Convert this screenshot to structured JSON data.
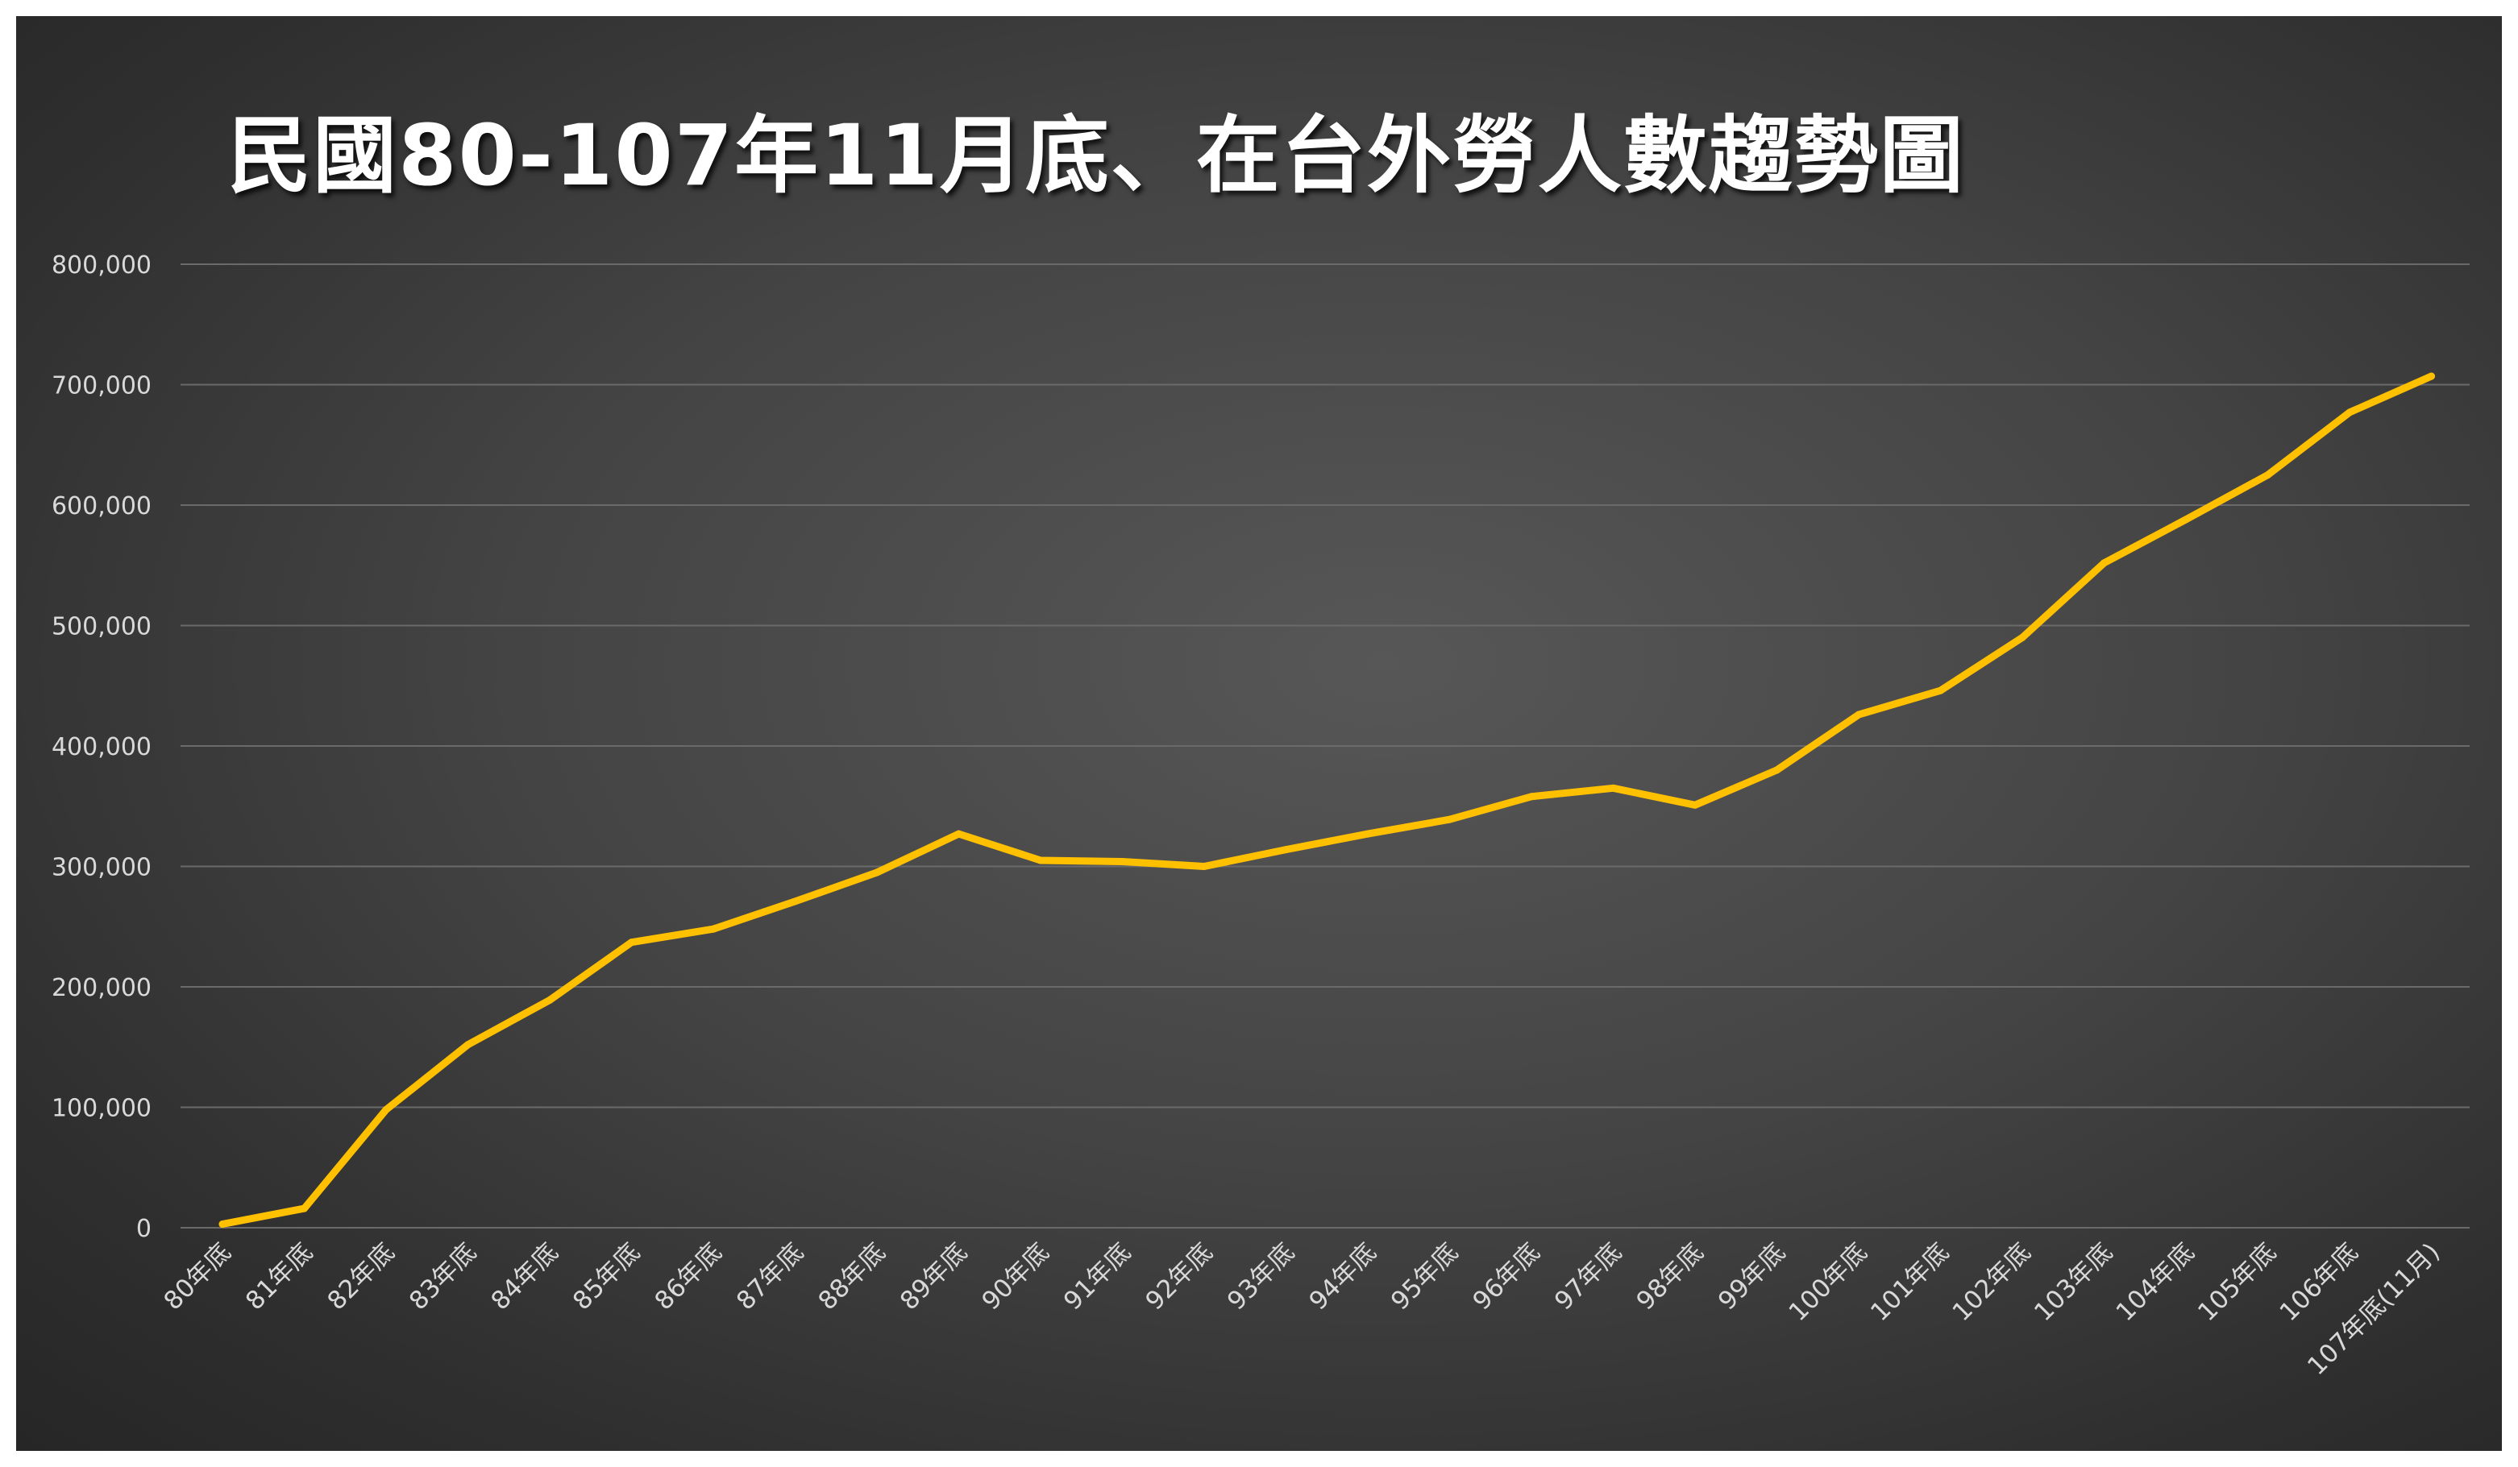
{
  "chart_data": {
    "type": "line",
    "title": "民國80-107年11月底、在台外勞人數趨勢圖",
    "xlabel": "",
    "ylabel": "",
    "categories": [
      "80年底",
      "81年底",
      "82年底",
      "83年底",
      "84年底",
      "85年底",
      "86年底",
      "87年底",
      "88年底",
      "89年底",
      "90年底",
      "91年底",
      "92年底",
      "93年底",
      "94年底",
      "95年底",
      "96年底",
      "97年底",
      "98年底",
      "99年底",
      "100年底",
      "101年底",
      "102年底",
      "103年底",
      "104年底",
      "105年底",
      "106年底",
      "107年底(11月)"
    ],
    "series": [
      {
        "values": [
          3000,
          16000,
          98000,
          152000,
          189000,
          237000,
          248000,
          271000,
          295000,
          327000,
          305000,
          304000,
          300000,
          314000,
          327000,
          339000,
          358000,
          365000,
          351000,
          380000,
          426000,
          446000,
          490000,
          552000,
          588000,
          625000,
          677000,
          707000
        ]
      }
    ],
    "ylim": [
      0,
      800000
    ],
    "yticks": [
      0,
      100000,
      200000,
      300000,
      400000,
      500000,
      600000,
      700000,
      800000
    ],
    "ytick_labels": [
      "0",
      "100,000",
      "200,000",
      "300,000",
      "400,000",
      "500,000",
      "600,000",
      "700,000",
      "800,000"
    ],
    "grid": true,
    "legend": "none",
    "colors": {
      "line": "#FFC000",
      "background": "#404040",
      "grid": "#6a6a6a",
      "tick_text": "#d9d9d9",
      "title": "#ffffff"
    }
  }
}
